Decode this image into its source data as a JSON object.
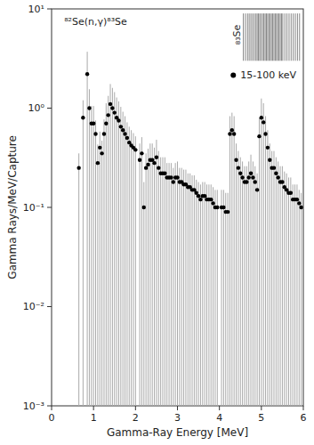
{
  "chart_data": {
    "type": "scatter",
    "title": "⁸²Se(n,γ)⁸³Se",
    "x_label": "Gamma-Ray Energy [MeV]",
    "y_label": "Gamma Rays/MeV/Capture",
    "xlim": [
      0,
      6
    ],
    "ylim": [
      0.001,
      10
    ],
    "xticks": [
      0,
      1,
      2,
      3,
      4,
      5,
      6
    ],
    "yticks": [
      {
        "value": 0.001,
        "label": "10⁻³"
      },
      {
        "value": 0.01,
        "label": "10⁻²"
      },
      {
        "value": 0.1,
        "label": "10⁻¹"
      },
      {
        "value": 1,
        "label": "10⁰"
      },
      {
        "value": 10,
        "label": "10¹"
      }
    ],
    "log": "y",
    "grid": false,
    "legend": "upper right",
    "series": [
      {
        "name": "15-100 keV",
        "type": "scatter",
        "marker": "circle",
        "color": "#000000",
        "x": [
          0.65,
          0.75,
          0.85,
          0.9,
          0.95,
          1.0,
          1.05,
          1.1,
          1.15,
          1.2,
          1.25,
          1.3,
          1.35,
          1.4,
          1.45,
          1.5,
          1.55,
          1.6,
          1.65,
          1.7,
          1.75,
          1.8,
          1.85,
          1.9,
          1.95,
          2.0,
          2.1,
          2.15,
          2.2,
          2.25,
          2.3,
          2.35,
          2.4,
          2.45,
          2.5,
          2.55,
          2.6,
          2.65,
          2.7,
          2.75,
          2.8,
          2.85,
          2.9,
          2.95,
          3.0,
          3.05,
          3.1,
          3.15,
          3.2,
          3.25,
          3.3,
          3.35,
          3.4,
          3.45,
          3.5,
          3.55,
          3.6,
          3.65,
          3.7,
          3.75,
          3.8,
          3.85,
          3.9,
          3.95,
          4.05,
          4.1,
          4.15,
          4.2,
          4.25,
          4.3,
          4.35,
          4.4,
          4.45,
          4.5,
          4.55,
          4.6,
          4.65,
          4.7,
          4.75,
          4.8,
          4.85,
          4.9,
          4.95,
          5.0,
          5.05,
          5.1,
          5.15,
          5.2,
          5.25,
          5.3,
          5.35,
          5.4,
          5.45,
          5.5,
          5.55,
          5.6,
          5.65,
          5.7,
          5.75,
          5.8,
          5.85,
          5.9,
          5.95
        ],
        "values": [
          0.25,
          0.8,
          2.2,
          1.0,
          0.7,
          0.7,
          0.55,
          0.28,
          0.4,
          0.35,
          0.55,
          0.7,
          0.85,
          1.1,
          1.0,
          0.9,
          0.8,
          0.75,
          0.65,
          0.6,
          0.55,
          0.5,
          0.45,
          0.42,
          0.4,
          0.38,
          0.3,
          0.35,
          0.1,
          0.25,
          0.27,
          0.3,
          0.3,
          0.28,
          0.32,
          0.25,
          0.22,
          0.22,
          0.22,
          0.2,
          0.2,
          0.2,
          0.18,
          0.2,
          0.2,
          0.18,
          0.18,
          0.17,
          0.17,
          0.16,
          0.16,
          0.15,
          0.15,
          0.14,
          0.13,
          0.12,
          0.13,
          0.13,
          0.12,
          0.12,
          0.12,
          0.11,
          0.1,
          0.1,
          0.1,
          0.1,
          0.09,
          0.09,
          0.55,
          0.6,
          0.55,
          0.3,
          0.25,
          0.22,
          0.2,
          0.18,
          0.18,
          0.2,
          0.22,
          0.2,
          0.18,
          0.15,
          0.52,
          0.8,
          0.72,
          0.55,
          0.4,
          0.3,
          0.25,
          0.25,
          0.22,
          0.2,
          0.18,
          0.18,
          0.16,
          0.15,
          0.14,
          0.14,
          0.12,
          0.12,
          0.12,
          0.11,
          0.1
        ],
        "yerr_hi": [
          0.1,
          0.4,
          1.5,
          0.55,
          0.35,
          0.35,
          0.2,
          0.15,
          0.18,
          0.12,
          0.22,
          0.42,
          0.48,
          0.65,
          0.6,
          0.55,
          0.48,
          0.42,
          0.38,
          0.32,
          0.28,
          0.22,
          0.2,
          0.18,
          0.16,
          0.14,
          0.14,
          0.16,
          0.08,
          0.1,
          0.12,
          0.14,
          0.14,
          0.12,
          0.16,
          0.12,
          0.1,
          0.1,
          0.1,
          0.08,
          0.08,
          0.08,
          0.07,
          0.08,
          0.09,
          0.07,
          0.07,
          0.07,
          0.07,
          0.06,
          0.06,
          0.06,
          0.06,
          0.05,
          0.05,
          0.05,
          0.05,
          0.05,
          0.05,
          0.05,
          0.05,
          0.05,
          0.05,
          0.05,
          0.05,
          0.05,
          0.05,
          0.05,
          0.28,
          0.3,
          0.28,
          0.14,
          0.12,
          0.1,
          0.09,
          0.08,
          0.08,
          0.09,
          0.12,
          0.09,
          0.08,
          0.07,
          0.28,
          0.45,
          0.4,
          0.28,
          0.2,
          0.14,
          0.12,
          0.12,
          0.1,
          0.09,
          0.08,
          0.08,
          0.07,
          0.07,
          0.06,
          0.06,
          0.05,
          0.05,
          0.05,
          0.04,
          0.04
        ]
      },
      {
        "type": "segments",
        "color": "#888888",
        "x": [
          4.57,
          4.62,
          4.67,
          4.71,
          4.75,
          4.79,
          4.83,
          4.87,
          4.9,
          4.93,
          4.96,
          4.99,
          5.03,
          5.06,
          5.09,
          5.12,
          5.15,
          5.18,
          5.21,
          5.24,
          5.27,
          5.3,
          5.33,
          5.36,
          5.39,
          5.42,
          5.45,
          5.48,
          5.51,
          5.56,
          5.61,
          5.66,
          5.71,
          5.76,
          5.81,
          5.86,
          5.91
        ],
        "y_low": 3.0,
        "y_high": 9.0
      }
    ],
    "annotations": [
      {
        "text": "₈₃Se",
        "x": 4.42,
        "y": 5.5
      }
    ]
  }
}
